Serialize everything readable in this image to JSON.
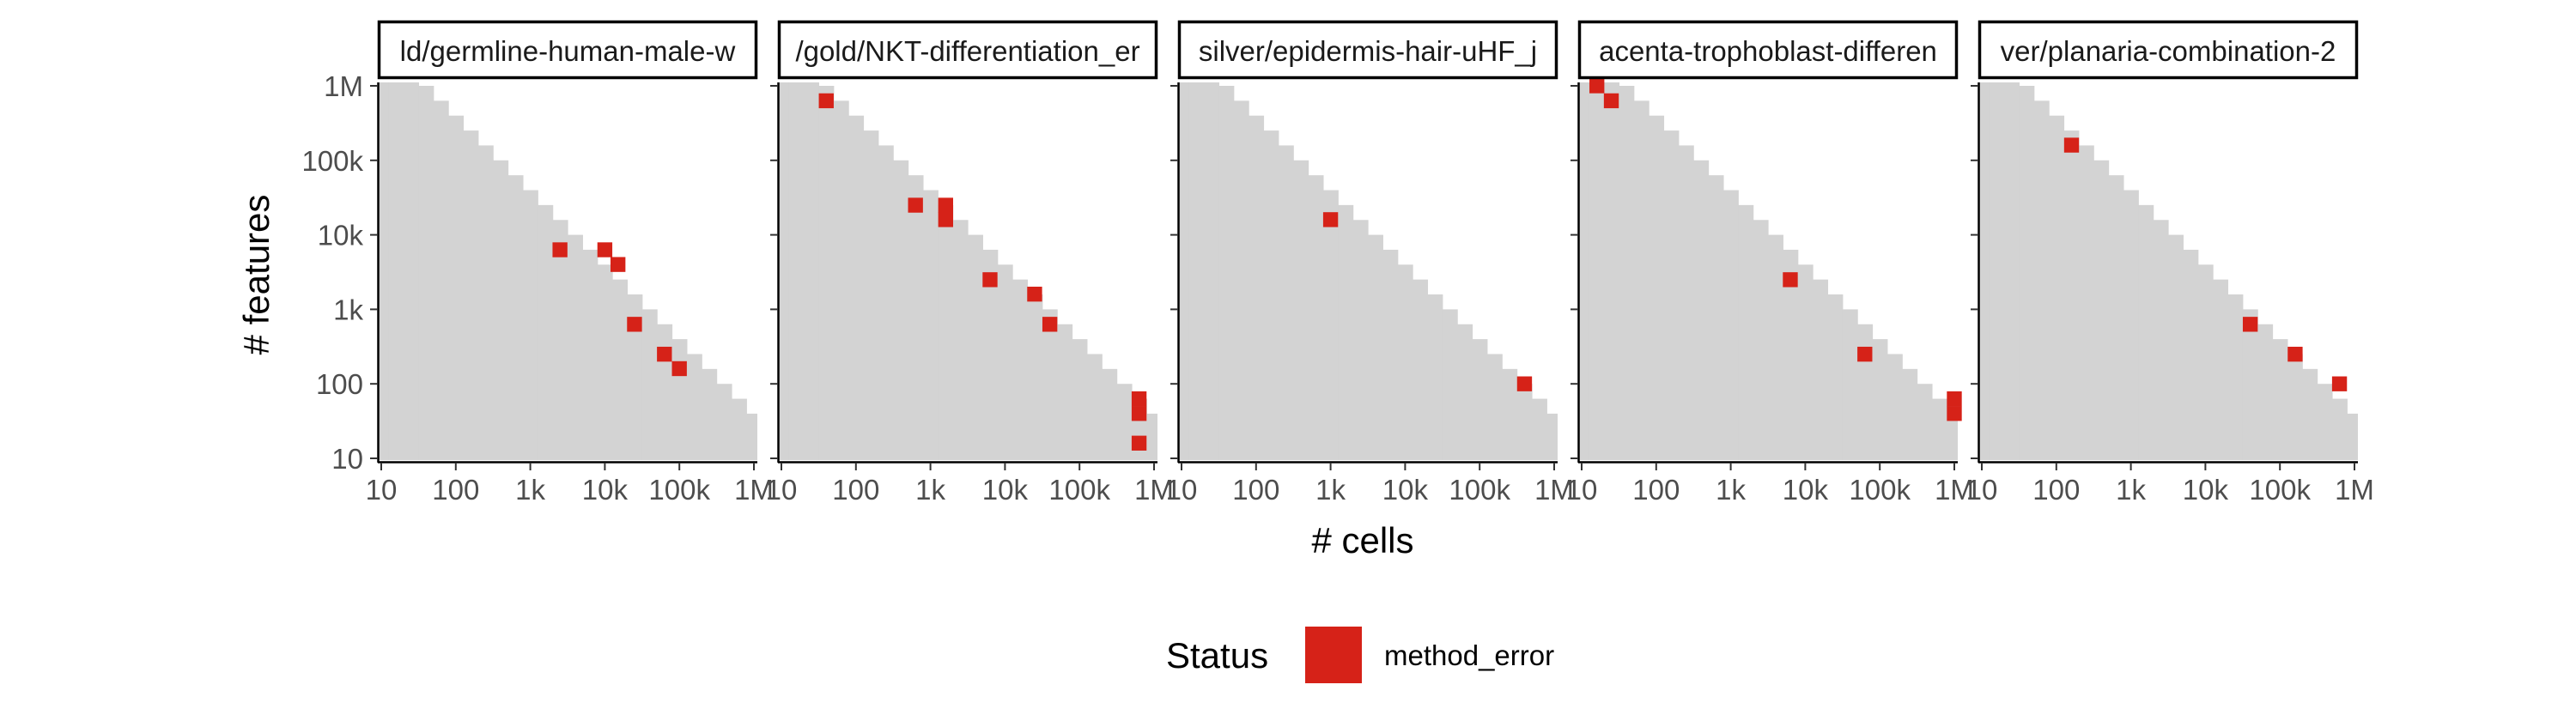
{
  "chart_data": {
    "type": "heatmap",
    "xlabel": "# cells",
    "ylabel": "# features",
    "x_scale": "log10",
    "y_scale": "log10",
    "xlim": [
      10,
      1000000
    ],
    "ylim": [
      10,
      1000000
    ],
    "x_ticks": [
      {
        "value": 10,
        "label": "10"
      },
      {
        "value": 100,
        "label": "100"
      },
      {
        "value": 1000,
        "label": "1k"
      },
      {
        "value": 10000,
        "label": "10k"
      },
      {
        "value": 100000,
        "label": "100k"
      },
      {
        "value": 1000000,
        "label": "1M"
      }
    ],
    "y_ticks": [
      {
        "value": 10,
        "label": "10"
      },
      {
        "value": 100,
        "label": "100"
      },
      {
        "value": 1000,
        "label": "1k"
      },
      {
        "value": 10000,
        "label": "10k"
      },
      {
        "value": 100000,
        "label": "100k"
      },
      {
        "value": 1000000,
        "label": "1M"
      }
    ],
    "background_region": "cells × features below a fixed budget (staircase)",
    "legend": {
      "title": "Status",
      "placement": "bottom",
      "entries": [
        {
          "label": "method_error",
          "color": "#d62218"
        }
      ]
    },
    "colors": {
      "region": "#d3d3d3",
      "method_error": "#d62218"
    },
    "panels": [
      {
        "title": "ld/germline-human-male-w",
        "points": [
          {
            "x": 2500,
            "y": 6300,
            "status": "method_error"
          },
          {
            "x": 10000,
            "y": 6300,
            "status": "method_error"
          },
          {
            "x": 15000,
            "y": 4000,
            "status": "method_error"
          },
          {
            "x": 25000,
            "y": 630,
            "status": "method_error"
          },
          {
            "x": 63000,
            "y": 250,
            "status": "method_error"
          },
          {
            "x": 100000,
            "y": 160,
            "status": "method_error"
          }
        ]
      },
      {
        "title": "/gold/NKT-differentiation_er",
        "points": [
          {
            "x": 40,
            "y": 630000,
            "status": "method_error"
          },
          {
            "x": 630,
            "y": 25000,
            "status": "method_error"
          },
          {
            "x": 1600,
            "y": 25000,
            "status": "method_error"
          },
          {
            "x": 1600,
            "y": 16000,
            "status": "method_error"
          },
          {
            "x": 6300,
            "y": 2500,
            "status": "method_error"
          },
          {
            "x": 25000,
            "y": 1600,
            "status": "method_error"
          },
          {
            "x": 40000,
            "y": 630,
            "status": "method_error"
          },
          {
            "x": 630000,
            "y": 63,
            "status": "method_error"
          },
          {
            "x": 630000,
            "y": 40,
            "status": "method_error"
          },
          {
            "x": 630000,
            "y": 16,
            "status": "method_error"
          }
        ]
      },
      {
        "title": "silver/epidermis-hair-uHF_j",
        "points": [
          {
            "x": 1000,
            "y": 16000,
            "status": "method_error"
          },
          {
            "x": 400000,
            "y": 100,
            "status": "method_error"
          }
        ]
      },
      {
        "title": "acenta-trophoblast-differen",
        "points": [
          {
            "x": 16,
            "y": 1000000,
            "status": "method_error"
          },
          {
            "x": 25,
            "y": 630000,
            "status": "method_error"
          },
          {
            "x": 6300,
            "y": 2500,
            "status": "method_error"
          },
          {
            "x": 63000,
            "y": 250,
            "status": "method_error"
          },
          {
            "x": 1000000,
            "y": 63,
            "status": "method_error"
          },
          {
            "x": 1000000,
            "y": 40,
            "status": "method_error"
          }
        ]
      },
      {
        "title": "ver/planaria-combination-2",
        "points": [
          {
            "x": 160,
            "y": 160000,
            "status": "method_error"
          },
          {
            "x": 40000,
            "y": 630,
            "status": "method_error"
          },
          {
            "x": 160000,
            "y": 250,
            "status": "method_error"
          },
          {
            "x": 630000,
            "y": 100,
            "status": "method_error"
          }
        ]
      }
    ]
  }
}
